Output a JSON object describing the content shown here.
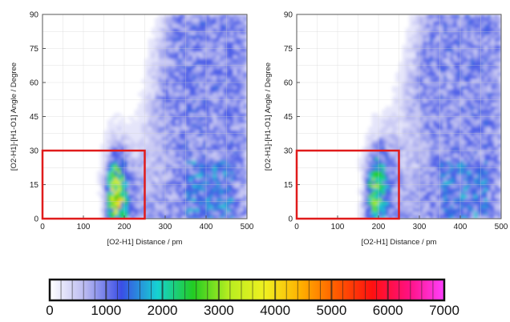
{
  "chart_data": {
    "type": "heatmap",
    "panels": [
      {
        "xlabel": "[O2-H1] Distance / pm",
        "ylabel": "[O2-H1]-[H1-O1] Angle / Degree",
        "xlim": [
          0,
          500
        ],
        "ylim": [
          0,
          90
        ],
        "xticks": [
          "0",
          "100",
          "200",
          "300",
          "400",
          "500"
        ],
        "yticks": [
          "0",
          "15",
          "30",
          "45",
          "60",
          "75",
          "90"
        ],
        "highlight_box": {
          "x": [
            0,
            250
          ],
          "y": [
            0,
            30
          ],
          "color": "#e01b1b"
        },
        "peak": {
          "x": 180,
          "y": 10,
          "max_value": 3000
        }
      },
      {
        "xlabel": "[O2-H1] Distance / pm",
        "ylabel": "[O2-H1]-[H1-O1] Angle / Degree",
        "xlim": [
          0,
          500
        ],
        "ylim": [
          0,
          90
        ],
        "xticks": [
          "0",
          "100",
          "200",
          "300",
          "400",
          "500"
        ],
        "yticks": [
          "0",
          "15",
          "30",
          "45",
          "60",
          "75",
          "90"
        ],
        "highlight_box": {
          "x": [
            0,
            250
          ],
          "y": [
            0,
            30
          ],
          "color": "#e01b1b"
        },
        "peak": {
          "x": 190,
          "y": 12,
          "max_value": 1800
        }
      }
    ],
    "colorbar": {
      "min": 0,
      "max": 7000,
      "labels": [
        "0",
        "1000",
        "2000",
        "3000",
        "4000",
        "5000",
        "6000",
        "7000"
      ],
      "colors": [
        "#ffffff",
        "#b8b8f0",
        "#3a4ee6",
        "#16d2d2",
        "#22cc22",
        "#b8ee20",
        "#f0f020",
        "#ffb000",
        "#ff5a00",
        "#ff1010",
        "#ff1080",
        "#ff40ff"
      ]
    }
  }
}
